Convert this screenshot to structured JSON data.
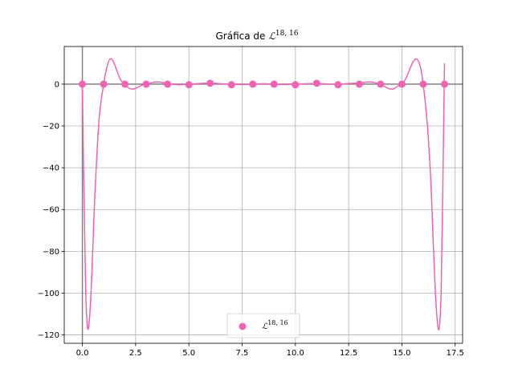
{
  "chart_data": {
    "type": "line",
    "title": {
      "prefix": "Gráfica de ",
      "symbol": "ℒ",
      "superscript": "18, 16"
    },
    "xlabel": "",
    "ylabel": "",
    "xlim": [
      -0.85,
      17.85
    ],
    "ylim": [
      -124,
      18
    ],
    "xticks": [
      0.0,
      2.5,
      5.0,
      7.5,
      10.0,
      12.5,
      15.0,
      17.5
    ],
    "xtick_labels": [
      "0.0",
      "2.5",
      "5.0",
      "7.5",
      "10.0",
      "12.5",
      "15.0",
      "17.5"
    ],
    "yticks": [
      0,
      -20,
      -40,
      -60,
      -80,
      -100,
      -120
    ],
    "ytick_labels": [
      "0",
      "−20",
      "−40",
      "−60",
      "−80",
      "−100",
      "−120"
    ],
    "grid": true,
    "legend_position": "bottom-center",
    "line_color": "#f063b3",
    "axis_line_color": "#808080",
    "curve": {
      "x": [
        0.0,
        0.08,
        0.16,
        0.25,
        0.35,
        0.45,
        0.55,
        0.65,
        0.8,
        1.0,
        1.15,
        1.3,
        1.45,
        1.6,
        1.8,
        2.0,
        2.2,
        2.4,
        2.6,
        2.8,
        3.0,
        3.3,
        3.6,
        3.9,
        4.2,
        4.5,
        5.0,
        5.5,
        6.0,
        6.5,
        7.0,
        7.5,
        8.0,
        8.5,
        9.0,
        9.5,
        10.0,
        10.5,
        11.0,
        11.5,
        12.0,
        12.5,
        13.0,
        13.4,
        13.7,
        14.0,
        14.2,
        14.4,
        14.6,
        14.8,
        15.0,
        15.2,
        15.4,
        15.55,
        15.7,
        15.85,
        16.0,
        16.2,
        16.35,
        16.45,
        16.55,
        16.65,
        16.75,
        16.84,
        16.92,
        17.0
      ],
      "y": [
        0.0,
        -55,
        -100,
        -117,
        -110,
        -90,
        -62,
        -40,
        -15,
        0.0,
        8,
        12,
        11,
        7,
        2,
        0.0,
        -2,
        -2.3,
        -1.5,
        -0.5,
        0.0,
        0.8,
        1.0,
        0.5,
        0.0,
        -0.3,
        0.0,
        0.3,
        0.5,
        0.2,
        0.0,
        -0.2,
        0.0,
        0.2,
        0.0,
        -0.2,
        0.0,
        0.2,
        0.3,
        0.1,
        0.0,
        0.3,
        0.5,
        1.0,
        0.8,
        0.0,
        -1.2,
        -2.2,
        -2.3,
        -1.0,
        0.0,
        3,
        8,
        11,
        12,
        9,
        0.0,
        -20,
        -45,
        -70,
        -95,
        -112,
        -117,
        -100,
        -50,
        10
      ]
    },
    "series": [
      {
        "name": "ℒ^{18, 16}",
        "legend_symbol": "ℒ",
        "legend_superscript": "18, 16",
        "marker_color": "#f063b3",
        "x": [
          0,
          1,
          2,
          3,
          4,
          5,
          6,
          7,
          8,
          9,
          10,
          11,
          12,
          13,
          14,
          15,
          16,
          17
        ],
        "y": [
          0.0,
          0.0,
          0.0,
          0.0,
          0.0,
          -0.3,
          0.4,
          -0.3,
          0.0,
          0.0,
          -0.3,
          0.4,
          -0.3,
          0.0,
          0.0,
          0.0,
          0.0,
          0.0
        ]
      }
    ]
  }
}
